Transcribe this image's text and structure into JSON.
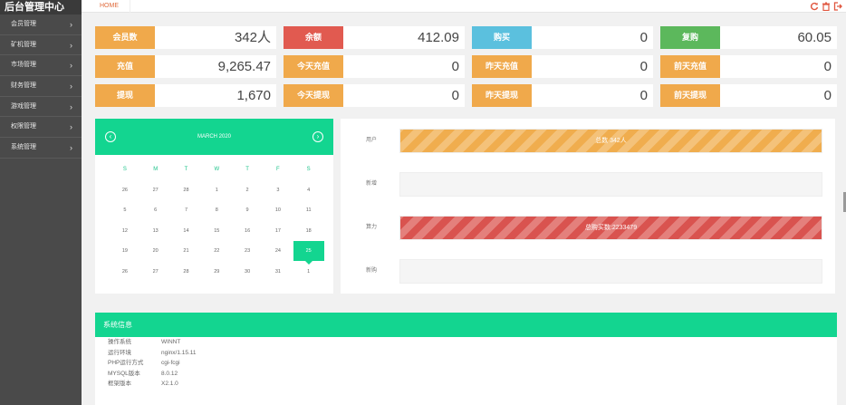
{
  "sidebar": {
    "brand": "后台管理中心",
    "items": [
      {
        "label": "会员管理"
      },
      {
        "label": "矿机管理"
      },
      {
        "label": "市场管理"
      },
      {
        "label": "财务管理"
      },
      {
        "label": "游戏管理"
      },
      {
        "label": "权限管理"
      },
      {
        "label": "系统管理"
      }
    ],
    "chevron": "›"
  },
  "topbar": {
    "home_tab": "HOME",
    "icons": [
      "refresh-icon",
      "trash-icon",
      "logout-icon"
    ]
  },
  "stats": [
    {
      "label": "会员数",
      "value": "342人",
      "color": "#f0a94b"
    },
    {
      "label": "余额",
      "value": "412.09",
      "color": "#e15a50"
    },
    {
      "label": "购买",
      "value": "0",
      "color": "#5bc0de"
    },
    {
      "label": "复购",
      "value": "60.05",
      "color": "#5cb85c"
    },
    {
      "label": "充值",
      "value": "9,265.47",
      "color": "#f0a94b"
    },
    {
      "label": "今天充值",
      "value": "0",
      "color": "#f0a94b"
    },
    {
      "label": "昨天充值",
      "value": "0",
      "color": "#f0a94b"
    },
    {
      "label": "前天充值",
      "value": "0",
      "color": "#f0a94b"
    },
    {
      "label": "提现",
      "value": "1,670",
      "color": "#f0a94b"
    },
    {
      "label": "今天提现",
      "value": "0",
      "color": "#f0a94b"
    },
    {
      "label": "昨天提现",
      "value": "0",
      "color": "#f0a94b"
    },
    {
      "label": "前天提现",
      "value": "0",
      "color": "#f0a94b"
    }
  ],
  "calendar": {
    "title": "MARCH 2020",
    "prev_icon": "‹",
    "next_icon": "›",
    "weekdays": [
      "S",
      "M",
      "T",
      "W",
      "T",
      "F",
      "S"
    ],
    "weeks": [
      [
        "26",
        "27",
        "28",
        "1",
        "2",
        "3",
        "4"
      ],
      [
        "5",
        "6",
        "7",
        "8",
        "9",
        "10",
        "11"
      ],
      [
        "12",
        "13",
        "14",
        "15",
        "16",
        "17",
        "18"
      ],
      [
        "19",
        "20",
        "21",
        "22",
        "23",
        "24",
        "25"
      ],
      [
        "26",
        "27",
        "28",
        "29",
        "30",
        "31",
        "1"
      ]
    ],
    "selected": "25"
  },
  "progress": [
    {
      "label": "用户",
      "bar_text": "总数 342人",
      "fraction": 1.0,
      "style": "orange"
    },
    {
      "label": "新增",
      "bar_text": "",
      "fraction": 0.0,
      "style": "orange"
    },
    {
      "label": "算力",
      "bar_text": "总购买数:2233479",
      "fraction": 1.0,
      "style": "red"
    },
    {
      "label": "新购",
      "bar_text": "",
      "fraction": 0.0,
      "style": "red"
    }
  ],
  "sysinfo": {
    "title": "系统信息",
    "rows": [
      {
        "k": "操作系统",
        "v": "WINNT"
      },
      {
        "k": "运行环境",
        "v": "nginx/1.15.11"
      },
      {
        "k": "PHP运行方式",
        "v": "cgi-fcgi"
      },
      {
        "k": "MYSQL版本",
        "v": "8.0.12"
      },
      {
        "k": "框架版本",
        "v": "X2.1.0"
      }
    ]
  }
}
